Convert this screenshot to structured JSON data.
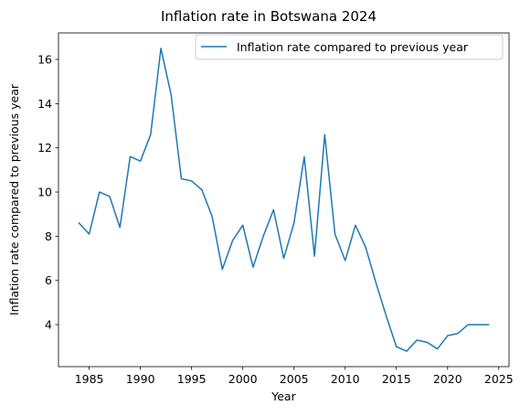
{
  "chart_data": {
    "type": "line",
    "title": "Inflation rate in Botswana 2024",
    "xlabel": "Year",
    "ylabel": "Inflation rate compared to previous year",
    "xlim": [
      1982,
      2026
    ],
    "ylim": [
      2.1,
      17.2
    ],
    "xticks": [
      1985,
      1990,
      1995,
      2000,
      2005,
      2010,
      2015,
      2020,
      2025
    ],
    "yticks": [
      4,
      6,
      8,
      10,
      12,
      14,
      16
    ],
    "grid": false,
    "legend_position": "top-right",
    "series": [
      {
        "name": "Inflation rate compared to previous year",
        "color": "#1f77b4",
        "x": [
          1984,
          1985,
          1986,
          1987,
          1988,
          1989,
          1990,
          1991,
          1992,
          1993,
          1994,
          1995,
          1996,
          1997,
          1998,
          1999,
          2000,
          2001,
          2002,
          2003,
          2004,
          2005,
          2006,
          2007,
          2008,
          2009,
          2010,
          2011,
          2012,
          2013,
          2014,
          2015,
          2016,
          2017,
          2018,
          2019,
          2020,
          2021,
          2022,
          2023,
          2024
        ],
        "values": [
          8.6,
          8.1,
          10.0,
          9.8,
          8.4,
          11.6,
          11.4,
          12.6,
          16.5,
          14.4,
          10.6,
          10.5,
          10.1,
          8.9,
          6.5,
          7.8,
          8.5,
          6.6,
          8.0,
          9.2,
          7.0,
          8.6,
          11.6,
          7.1,
          12.6,
          8.1,
          6.9,
          8.5,
          7.5,
          5.9,
          4.4,
          3.0,
          2.8,
          3.3,
          3.2,
          2.9,
          3.5,
          3.6,
          4.0,
          4.0,
          4.0
        ]
      }
    ]
  }
}
